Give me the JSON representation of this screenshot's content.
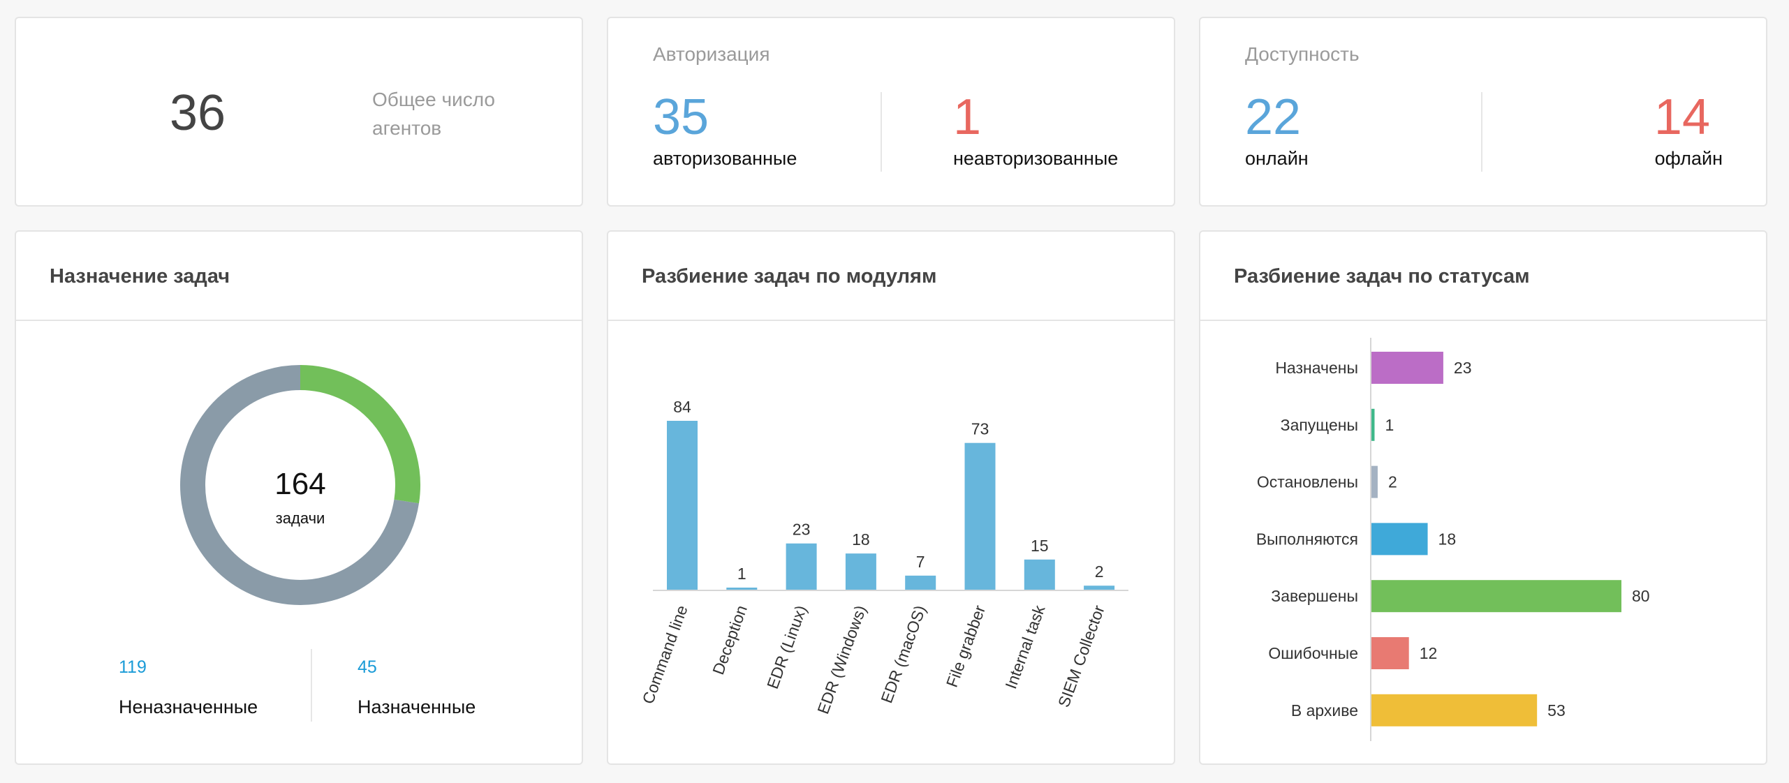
{
  "total": {
    "value": "36",
    "label_line1": "Общее число",
    "label_line2": "агентов"
  },
  "auth": {
    "title": "Авторизация",
    "authorized_value": "35",
    "authorized_label": "авторизованные",
    "unauthorized_value": "1",
    "unauthorized_label": "неавторизованные"
  },
  "availability": {
    "title": "Доступность",
    "online_value": "22",
    "online_label": "онлайн",
    "offline_value": "14",
    "offline_label": "офлайн"
  },
  "colors": {
    "blue": "#5aa5da",
    "red": "#e8675f",
    "legend_blue": "#1a9bd7"
  },
  "assignment": {
    "title": "Назначение задач",
    "total": "164",
    "total_label": "задачи",
    "unassigned_value": "119",
    "unassigned_label": "Неназначенные",
    "assigned_value": "45",
    "assigned_label": "Назначенные"
  },
  "modules": {
    "title": "Разбиение задач по модулям"
  },
  "statuses": {
    "title": "Разбиение задач по статусам"
  },
  "chart_data": [
    {
      "type": "pie",
      "title": "Назначение задач",
      "categories": [
        "Неназначенные",
        "Назначенные"
      ],
      "values": [
        119,
        45
      ],
      "colors": [
        "#8a9ba8",
        "#72bf5a"
      ]
    },
    {
      "type": "bar",
      "title": "Разбиение задач по модулям",
      "categories": [
        "Command line",
        "Deception",
        "EDR (Linux)",
        "EDR (Windows)",
        "EDR (macOS)",
        "File grabber",
        "Internal task",
        "SIEM Collector"
      ],
      "values": [
        84,
        1,
        23,
        18,
        7,
        73,
        15,
        2
      ],
      "color": "#67b6dc",
      "ylim": [
        0,
        84
      ]
    },
    {
      "type": "bar",
      "orientation": "horizontal",
      "title": "Разбиение задач по статусам",
      "categories": [
        "Назначены",
        "Запущены",
        "Остановлены",
        "Выполняются",
        "Завершены",
        "Ошибочные",
        "В архиве"
      ],
      "values": [
        23,
        1,
        2,
        18,
        80,
        12,
        53
      ],
      "colors": [
        "#bb6dc6",
        "#3fb88a",
        "#a4b2c2",
        "#3fa9d9",
        "#72bf5a",
        "#e87a72",
        "#efbe38"
      ],
      "xlim": [
        0,
        80
      ]
    }
  ]
}
